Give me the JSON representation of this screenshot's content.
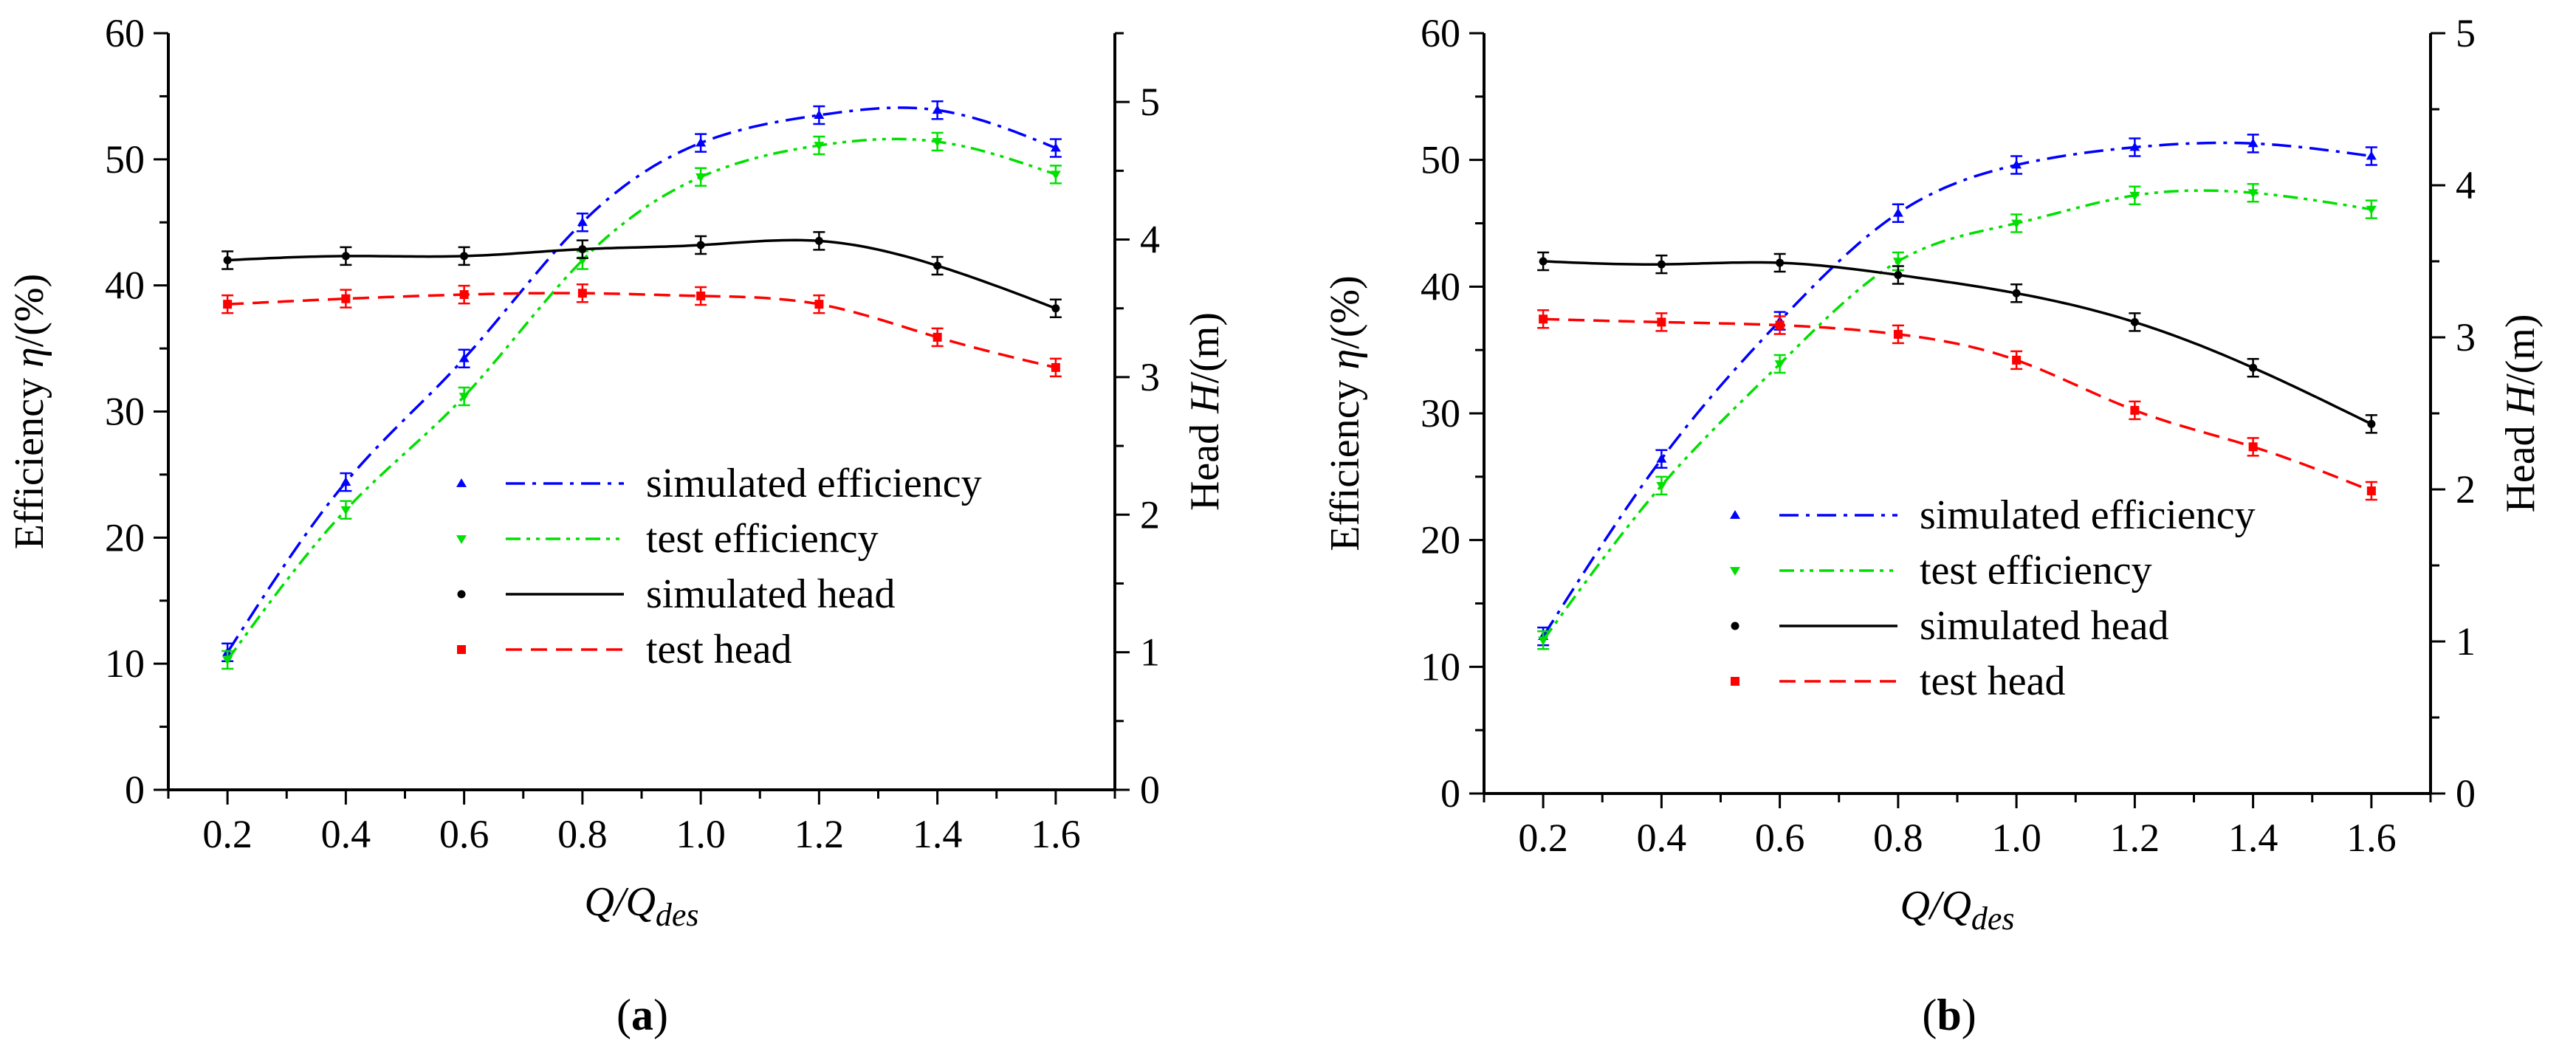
{
  "figure": {
    "x_axis_title": {
      "base": "Q/Q",
      "subscript": "des"
    },
    "y_left_title": {
      "prefix": "Efficiency ",
      "symbol": "η",
      "suffix": "/(%)"
    },
    "y_right_title": {
      "prefix": "Head ",
      "symbol": "H",
      "suffix": "/(m)"
    }
  },
  "chart_data": [
    {
      "type": "line",
      "panel_label": {
        "open": "(",
        "letter": "a",
        "close": ")"
      },
      "x": [
        0.2,
        0.4,
        0.6,
        0.8,
        1.0,
        1.2,
        1.4,
        1.6
      ],
      "x_ticks": [
        "0.2",
        "0.4",
        "0.6",
        "0.8",
        "1.0",
        "1.2",
        "1.4",
        "1.6"
      ],
      "xlim": [
        0.1,
        1.7
      ],
      "ylim_left": [
        0,
        60
      ],
      "y_left_ticks": [
        "0",
        "10",
        "20",
        "30",
        "40",
        "50",
        "60"
      ],
      "ylim_right": [
        0,
        5.5
      ],
      "y_right_ticks": [
        "0",
        "1",
        "2",
        "3",
        "4",
        "5"
      ],
      "grid": false,
      "legend_position": "center-right",
      "series": [
        {
          "name": "simulated efficiency",
          "axis": "left",
          "color": "#0000ff",
          "marker": "triangle-up",
          "line": "dash-dot",
          "values": [
            10.9,
            24.4,
            34.2,
            45.0,
            51.3,
            53.5,
            53.9,
            50.9
          ]
        },
        {
          "name": "test efficiency",
          "axis": "left",
          "color": "#00e000",
          "marker": "triangle-down",
          "line": "dash-dot-dot",
          "values": [
            10.3,
            22.2,
            31.2,
            42.0,
            48.6,
            51.1,
            51.4,
            48.8
          ]
        },
        {
          "name": "simulated head",
          "axis": "right",
          "color": "#000000",
          "marker": "circle",
          "line": "solid",
          "values": [
            3.85,
            3.88,
            3.88,
            3.93,
            3.96,
            3.99,
            3.81,
            3.5
          ]
        },
        {
          "name": "test head",
          "axis": "right",
          "color": "#ff0000",
          "marker": "square",
          "line": "dashed",
          "values": [
            3.53,
            3.57,
            3.6,
            3.61,
            3.59,
            3.53,
            3.29,
            3.07
          ]
        }
      ]
    },
    {
      "type": "line",
      "panel_label": {
        "open": "(",
        "letter": "b",
        "close": ")"
      },
      "x": [
        0.2,
        0.4,
        0.6,
        0.8,
        1.0,
        1.2,
        1.4,
        1.6
      ],
      "x_ticks": [
        "0.2",
        "0.4",
        "0.6",
        "0.8",
        "1.0",
        "1.2",
        "1.4",
        "1.6"
      ],
      "xlim": [
        0.1,
        1.7
      ],
      "ylim_left": [
        0,
        60
      ],
      "y_left_ticks": [
        "0",
        "10",
        "20",
        "30",
        "40",
        "50",
        "60"
      ],
      "ylim_right": [
        0,
        5
      ],
      "y_right_ticks": [
        "0",
        "1",
        "2",
        "3",
        "4",
        "5"
      ],
      "grid": false,
      "legend_position": "center-right",
      "series": [
        {
          "name": "simulated efficiency",
          "axis": "left",
          "color": "#0000ff",
          "marker": "triangle-up",
          "line": "dash-dot",
          "values": [
            12.4,
            26.4,
            37.3,
            45.8,
            49.6,
            51.0,
            51.3,
            50.3
          ]
        },
        {
          "name": "test efficiency",
          "axis": "left",
          "color": "#00e000",
          "marker": "triangle-down",
          "line": "dash-dot-dot",
          "values": [
            12.1,
            24.3,
            33.9,
            42.0,
            45.0,
            47.2,
            47.4,
            46.1
          ]
        },
        {
          "name": "simulated head",
          "axis": "right",
          "color": "#000000",
          "marker": "circle",
          "line": "solid",
          "values": [
            3.5,
            3.48,
            3.49,
            3.41,
            3.29,
            3.1,
            2.8,
            2.43
          ]
        },
        {
          "name": "test head",
          "axis": "right",
          "color": "#ff0000",
          "marker": "square",
          "line": "dashed",
          "values": [
            3.12,
            3.1,
            3.08,
            3.02,
            2.85,
            2.52,
            2.28,
            1.99
          ]
        }
      ]
    }
  ]
}
